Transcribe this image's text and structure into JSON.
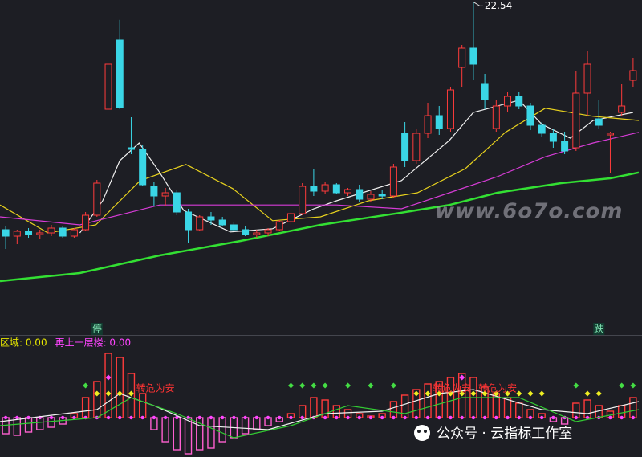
{
  "chart_data": {
    "type": "candlestick",
    "ylim": [
      12.2,
      22.6
    ],
    "xlim": [
      -0.5,
      55.5
    ],
    "up_color": "#ff3b3b",
    "down_color": "#3ad6e6",
    "ohlc": [
      [
        15.45,
        15.55,
        14.85,
        15.25
      ],
      [
        15.25,
        15.45,
        15.0,
        15.4
      ],
      [
        15.4,
        15.5,
        15.2,
        15.3
      ],
      [
        15.3,
        15.45,
        15.15,
        15.35
      ],
      [
        15.35,
        15.6,
        15.25,
        15.5
      ],
      [
        15.5,
        15.55,
        15.2,
        15.25
      ],
      [
        15.25,
        15.5,
        15.2,
        15.45
      ],
      [
        15.45,
        16.0,
        15.4,
        15.9
      ],
      [
        15.9,
        17.0,
        15.85,
        16.9
      ],
      [
        19.2,
        20.6,
        19.2,
        20.6
      ],
      [
        21.35,
        21.98,
        19.2,
        19.25
      ],
      [
        18.0,
        18.95,
        17.8,
        17.95
      ],
      [
        17.95,
        18.1,
        16.8,
        16.85
      ],
      [
        16.8,
        16.95,
        16.2,
        16.5
      ],
      [
        16.5,
        16.75,
        16.2,
        16.6
      ],
      [
        16.6,
        16.7,
        15.9,
        16.0
      ],
      [
        16.0,
        16.1,
        15.05,
        15.45
      ],
      [
        15.45,
        15.9,
        15.4,
        15.85
      ],
      [
        15.85,
        16.0,
        15.6,
        15.75
      ],
      [
        15.75,
        15.85,
        15.55,
        15.6
      ],
      [
        15.6,
        15.7,
        15.4,
        15.45
      ],
      [
        15.45,
        15.55,
        15.25,
        15.3
      ],
      [
        15.3,
        15.45,
        15.2,
        15.35
      ],
      [
        15.35,
        15.5,
        15.25,
        15.45
      ],
      [
        15.45,
        15.75,
        15.4,
        15.7
      ],
      [
        15.7,
        16.0,
        15.6,
        15.95
      ],
      [
        15.95,
        16.9,
        15.9,
        16.8
      ],
      [
        16.8,
        17.35,
        16.5,
        16.65
      ],
      [
        16.65,
        16.95,
        16.55,
        16.85
      ],
      [
        16.85,
        16.9,
        16.55,
        16.6
      ],
      [
        16.6,
        16.75,
        16.5,
        16.7
      ],
      [
        16.7,
        16.85,
        16.3,
        16.4
      ],
      [
        16.4,
        16.65,
        16.3,
        16.55
      ],
      [
        16.55,
        16.7,
        16.4,
        16.5
      ],
      [
        16.5,
        17.5,
        16.45,
        17.4
      ],
      [
        18.45,
        18.8,
        17.4,
        17.6
      ],
      [
        17.6,
        18.6,
        17.5,
        18.45
      ],
      [
        18.45,
        19.4,
        18.3,
        19.0
      ],
      [
        19.0,
        19.3,
        18.4,
        18.6
      ],
      [
        18.6,
        19.9,
        18.5,
        19.8
      ],
      [
        20.5,
        21.2,
        19.9,
        21.1
      ],
      [
        21.1,
        22.54,
        20.1,
        20.6
      ],
      [
        20.0,
        20.3,
        19.2,
        19.5
      ],
      [
        18.6,
        19.5,
        18.5,
        19.3
      ],
      [
        19.3,
        19.75,
        19.1,
        19.6
      ],
      [
        19.6,
        19.75,
        19.2,
        19.3
      ],
      [
        19.3,
        19.4,
        18.55,
        18.7
      ],
      [
        18.7,
        18.8,
        18.35,
        18.45
      ],
      [
        18.45,
        18.6,
        18.0,
        18.2
      ],
      [
        18.2,
        18.5,
        17.8,
        17.9
      ],
      [
        18.0,
        20.4,
        17.9,
        19.7
      ],
      [
        19.7,
        21.0,
        19.0,
        20.6
      ],
      [
        18.9,
        19.5,
        18.6,
        18.7
      ],
      [
        18.4,
        18.5,
        17.2,
        18.45
      ],
      [
        19.1,
        20.0,
        19.0,
        19.3
      ],
      [
        20.1,
        20.8,
        19.9,
        20.4
      ]
    ],
    "high_marker_index": 41,
    "lines": [
      {
        "color": "#f0f0f0",
        "x": [
          6.5,
          8.5,
          10,
          11.7,
          13.5,
          15.6,
          19.7,
          23.4,
          27,
          29,
          34.7,
          38.9,
          41,
          45,
          47,
          49.5,
          51.5,
          55
        ],
        "values": [
          15.35,
          16.35,
          17.6,
          18.15,
          17.23,
          16.05,
          15.38,
          15.48,
          16.1,
          16.35,
          16.98,
          18.23,
          19.1,
          19.48,
          18.73,
          18.3,
          18.85,
          19.1
        ]
      },
      {
        "color": "#e8d21e",
        "x": [
          -0.5,
          3.7,
          7.9,
          11.8,
          15.8,
          19.9,
          23.4,
          27.6,
          31.8,
          36.1,
          40.3,
          43.8,
          47.3,
          51.5,
          55.5
        ],
        "values": [
          16.22,
          15.35,
          15.6,
          16.98,
          17.48,
          16.73,
          15.73,
          15.85,
          16.35,
          16.6,
          17.35,
          18.48,
          19.23,
          18.98,
          18.85
        ]
      },
      {
        "color": "#d63cd6",
        "x": [
          -0.5,
          6.5,
          13.5,
          20.6,
          29,
          34.7,
          38.9,
          43.1,
          47.3,
          51.5,
          55.5
        ],
        "values": [
          15.85,
          15.6,
          16.22,
          16.22,
          16.22,
          16.1,
          16.6,
          17.1,
          17.72,
          18.15,
          18.48
        ]
      },
      {
        "color": "#33e033",
        "x": [
          -0.5,
          6.5,
          13.5,
          20.6,
          27.6,
          34.7,
          38.9,
          43.1,
          48.7,
          53,
          55.5
        ],
        "values": [
          13.85,
          14.1,
          14.65,
          15.1,
          15.6,
          15.98,
          16.22,
          16.6,
          16.9,
          17.05,
          17.23
        ]
      }
    ],
    "markers": [
      {
        "label": "停",
        "index": 8
      },
      {
        "label": "跌",
        "index": 52
      }
    ],
    "watermark": "www.6o7o.com",
    "footer": "公众号 · 云指标工作室",
    "indicator": {
      "header": [
        {
          "text": "区域: 0.00",
          "color": "#e6e600"
        },
        {
          "text": "再上一层楼: 0.00",
          "color": "#ff44ff"
        }
      ],
      "ylim": [
        -49,
        90
      ],
      "up_color": "#ff3b3b",
      "down_color": "#ff5fd0",
      "values": [
        -20,
        -22,
        -18,
        -15,
        -12,
        -8,
        5,
        25,
        45,
        80,
        75,
        55,
        30,
        -15,
        -30,
        -40,
        -45,
        -40,
        -38,
        -30,
        -25,
        -20,
        -15,
        -10,
        -5,
        5,
        15,
        25,
        22,
        15,
        10,
        5,
        2,
        5,
        20,
        28,
        35,
        42,
        45,
        50,
        55,
        50,
        38,
        30,
        25,
        18,
        10,
        5,
        -5,
        -8,
        18,
        22,
        15,
        8,
        15,
        25
      ],
      "lines": [
        {
          "color": "#f0f0f0",
          "x": [
            -0.5,
            8,
            10,
            13,
            17,
            23,
            28,
            33,
            38,
            41,
            47,
            51,
            55.5
          ],
          "values": [
            -5,
            10,
            30,
            15,
            -10,
            -15,
            5,
            8,
            30,
            35,
            10,
            5,
            20
          ]
        },
        {
          "color": "#33cc33",
          "x": [
            -0.5,
            8,
            11,
            15,
            20,
            25,
            30,
            35,
            40,
            45,
            50,
            55.5
          ],
          "values": [
            -10,
            0,
            25,
            5,
            -25,
            -10,
            15,
            5,
            25,
            25,
            -5,
            10
          ]
        }
      ],
      "signals": [
        {
          "color": "#ff44ff",
          "indices": [
            9,
            40
          ]
        },
        {
          "color": "#44dd44",
          "indices": [
            7,
            25,
            26,
            27,
            28,
            30,
            32,
            34,
            50,
            54,
            55
          ]
        },
        {
          "color": "#eeee22",
          "indices": [
            8,
            9,
            10,
            11,
            36,
            37,
            38,
            39,
            40,
            41,
            42,
            43,
            44,
            45,
            46,
            47,
            51,
            52
          ]
        }
      ],
      "annotations": [
        {
          "text": "转危为安",
          "index": 12
        },
        {
          "text": "转危为安",
          "index": 38
        },
        {
          "text": "转危为安",
          "index": 42
        }
      ]
    }
  }
}
